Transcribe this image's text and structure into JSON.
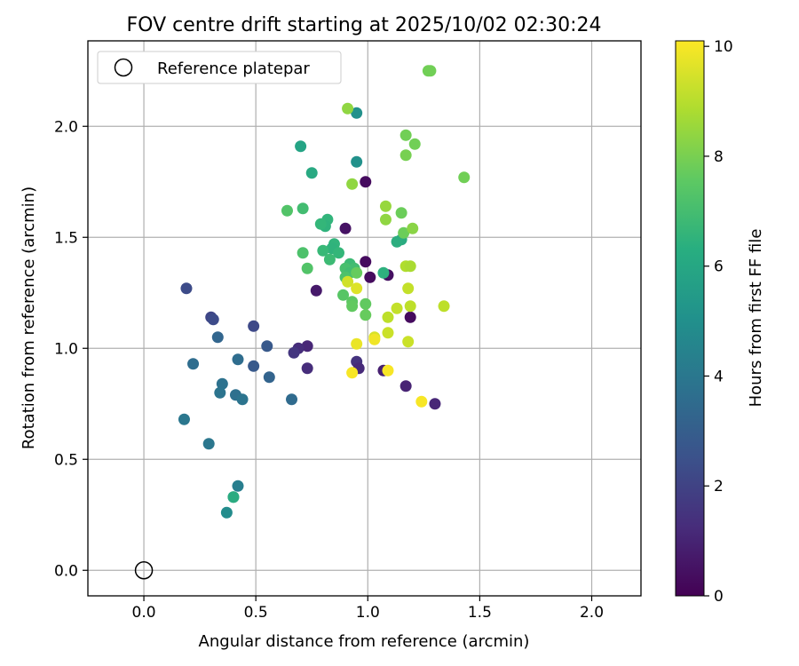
{
  "chart_data": {
    "type": "scatter",
    "title": "FOV centre drift starting at 2025/10/02 02:30:24",
    "xlabel": "Angular distance from reference (arcmin)",
    "ylabel": "Rotation from reference (arcmin)",
    "xlim": [
      -0.25,
      2.22
    ],
    "ylim": [
      -0.115,
      2.385
    ],
    "xticks": [
      0.0,
      0.5,
      1.0,
      1.5,
      2.0
    ],
    "xtick_labels": [
      "0.0",
      "0.5",
      "1.0",
      "1.5",
      "2.0"
    ],
    "yticks": [
      0.0,
      0.5,
      1.0,
      1.5,
      2.0
    ],
    "ytick_labels": [
      "0.0",
      "0.5",
      "1.0",
      "1.5",
      "2.0"
    ],
    "grid": true,
    "legend": {
      "position": "top-left",
      "entries": [
        "Reference platepar"
      ]
    },
    "reference_point": {
      "x": 0.0,
      "y": 0.0
    },
    "colorbar": {
      "label": "Hours from first FF file",
      "range": [
        0,
        10.1
      ],
      "ticks": [
        0,
        2,
        4,
        6,
        8,
        10
      ],
      "tick_labels": [
        "0",
        "2",
        "4",
        "6",
        "8",
        "10"
      ],
      "colormap": "viridis"
    },
    "points": [
      {
        "x": 0.99,
        "y": 1.75,
        "h": 0.3
      },
      {
        "x": 0.9,
        "y": 1.54,
        "h": 0.5
      },
      {
        "x": 0.99,
        "y": 1.39,
        "h": 0.3
      },
      {
        "x": 1.09,
        "y": 1.33,
        "h": 0.4
      },
      {
        "x": 1.01,
        "y": 1.32,
        "h": 0.3
      },
      {
        "x": 0.77,
        "y": 1.26,
        "h": 0.7
      },
      {
        "x": 1.19,
        "y": 1.14,
        "h": 0.3
      },
      {
        "x": 0.73,
        "y": 1.01,
        "h": 1.1
      },
      {
        "x": 0.69,
        "y": 1.0,
        "h": 1.3
      },
      {
        "x": 0.67,
        "y": 0.98,
        "h": 1.6
      },
      {
        "x": 0.73,
        "y": 0.91,
        "h": 1.3
      },
      {
        "x": 0.95,
        "y": 0.94,
        "h": 1.5
      },
      {
        "x": 0.96,
        "y": 0.91,
        "h": 1.2
      },
      {
        "x": 1.07,
        "y": 0.9,
        "h": 0.9
      },
      {
        "x": 1.17,
        "y": 0.83,
        "h": 1.0
      },
      {
        "x": 1.3,
        "y": 0.75,
        "h": 1.1
      },
      {
        "x": 0.19,
        "y": 1.27,
        "h": 2.3
      },
      {
        "x": 0.3,
        "y": 1.14,
        "h": 2.1
      },
      {
        "x": 0.31,
        "y": 1.13,
        "h": 2.3
      },
      {
        "x": 0.49,
        "y": 1.1,
        "h": 2.2
      },
      {
        "x": 0.55,
        "y": 1.01,
        "h": 2.8
      },
      {
        "x": 0.49,
        "y": 0.92,
        "h": 2.8
      },
      {
        "x": 0.56,
        "y": 0.87,
        "h": 3.2
      },
      {
        "x": 0.33,
        "y": 1.05,
        "h": 3.3
      },
      {
        "x": 0.42,
        "y": 0.95,
        "h": 3.6
      },
      {
        "x": 0.22,
        "y": 0.93,
        "h": 3.6
      },
      {
        "x": 0.35,
        "y": 0.84,
        "h": 3.8
      },
      {
        "x": 0.34,
        "y": 0.8,
        "h": 3.9
      },
      {
        "x": 0.41,
        "y": 0.79,
        "h": 3.7
      },
      {
        "x": 0.44,
        "y": 0.77,
        "h": 3.9
      },
      {
        "x": 0.66,
        "y": 0.77,
        "h": 3.5
      },
      {
        "x": 0.18,
        "y": 0.68,
        "h": 4.0
      },
      {
        "x": 0.29,
        "y": 0.57,
        "h": 4.0
      },
      {
        "x": 0.42,
        "y": 0.38,
        "h": 4.3
      },
      {
        "x": 0.4,
        "y": 0.33,
        "h": 5.9
      },
      {
        "x": 0.4,
        "y": 0.33,
        "h": 6.2
      },
      {
        "x": 0.37,
        "y": 0.26,
        "h": 4.9
      },
      {
        "x": 0.95,
        "y": 2.06,
        "h": 5.1
      },
      {
        "x": 0.95,
        "y": 1.84,
        "h": 5.1
      },
      {
        "x": 0.7,
        "y": 1.91,
        "h": 5.9
      },
      {
        "x": 0.75,
        "y": 1.79,
        "h": 6.1
      },
      {
        "x": 1.15,
        "y": 1.49,
        "h": 6.2
      },
      {
        "x": 1.13,
        "y": 1.48,
        "h": 6.3
      },
      {
        "x": 1.07,
        "y": 1.34,
        "h": 6.4
      },
      {
        "x": 0.82,
        "y": 1.58,
        "h": 6.6
      },
      {
        "x": 0.81,
        "y": 1.55,
        "h": 6.5
      },
      {
        "x": 0.79,
        "y": 1.56,
        "h": 6.7
      },
      {
        "x": 0.85,
        "y": 1.47,
        "h": 6.6
      },
      {
        "x": 0.84,
        "y": 1.45,
        "h": 6.5
      },
      {
        "x": 0.8,
        "y": 1.44,
        "h": 6.8
      },
      {
        "x": 0.87,
        "y": 1.43,
        "h": 6.7
      },
      {
        "x": 0.83,
        "y": 1.4,
        "h": 6.9
      },
      {
        "x": 0.92,
        "y": 1.38,
        "h": 6.9
      },
      {
        "x": 0.94,
        "y": 1.36,
        "h": 7.0
      },
      {
        "x": 0.9,
        "y": 1.36,
        "h": 7.1
      },
      {
        "x": 0.92,
        "y": 1.34,
        "h": 7.0
      },
      {
        "x": 0.9,
        "y": 1.32,
        "h": 7.2
      },
      {
        "x": 0.71,
        "y": 1.63,
        "h": 7.0
      },
      {
        "x": 0.64,
        "y": 1.62,
        "h": 7.3
      },
      {
        "x": 0.71,
        "y": 1.43,
        "h": 7.2
      },
      {
        "x": 0.73,
        "y": 1.36,
        "h": 7.3
      },
      {
        "x": 0.89,
        "y": 1.24,
        "h": 7.4
      },
      {
        "x": 0.93,
        "y": 1.21,
        "h": 7.5
      },
      {
        "x": 0.93,
        "y": 1.19,
        "h": 7.6
      },
      {
        "x": 0.99,
        "y": 1.2,
        "h": 7.6
      },
      {
        "x": 0.99,
        "y": 1.15,
        "h": 7.7
      },
      {
        "x": 0.95,
        "y": 1.34,
        "h": 7.7
      },
      {
        "x": 1.27,
        "y": 2.25,
        "h": 7.9
      },
      {
        "x": 1.28,
        "y": 2.25,
        "h": 7.9
      },
      {
        "x": 1.17,
        "y": 1.96,
        "h": 7.9
      },
      {
        "x": 1.21,
        "y": 1.92,
        "h": 7.9
      },
      {
        "x": 1.17,
        "y": 1.87,
        "h": 8.0
      },
      {
        "x": 1.43,
        "y": 1.77,
        "h": 7.9
      },
      {
        "x": 1.15,
        "y": 1.61,
        "h": 7.8
      },
      {
        "x": 1.16,
        "y": 1.52,
        "h": 7.8
      },
      {
        "x": 0.91,
        "y": 2.08,
        "h": 8.4
      },
      {
        "x": 0.93,
        "y": 1.74,
        "h": 8.4
      },
      {
        "x": 1.08,
        "y": 1.64,
        "h": 8.5
      },
      {
        "x": 1.08,
        "y": 1.58,
        "h": 8.4
      },
      {
        "x": 1.2,
        "y": 1.54,
        "h": 8.3
      },
      {
        "x": 1.17,
        "y": 1.37,
        "h": 8.9
      },
      {
        "x": 1.19,
        "y": 1.37,
        "h": 8.8
      },
      {
        "x": 1.18,
        "y": 1.27,
        "h": 9.2
      },
      {
        "x": 1.19,
        "y": 1.19,
        "h": 9.1
      },
      {
        "x": 1.13,
        "y": 1.18,
        "h": 9.2
      },
      {
        "x": 1.09,
        "y": 1.14,
        "h": 9.1
      },
      {
        "x": 1.09,
        "y": 1.07,
        "h": 9.3
      },
      {
        "x": 1.03,
        "y": 1.05,
        "h": 9.5
      },
      {
        "x": 1.18,
        "y": 1.03,
        "h": 9.3
      },
      {
        "x": 1.34,
        "y": 1.19,
        "h": 9.1
      },
      {
        "x": 0.95,
        "y": 1.27,
        "h": 9.6
      },
      {
        "x": 0.91,
        "y": 1.3,
        "h": 9.4
      },
      {
        "x": 0.95,
        "y": 1.02,
        "h": 9.8
      },
      {
        "x": 1.03,
        "y": 1.04,
        "h": 9.9
      },
      {
        "x": 0.93,
        "y": 0.89,
        "h": 10.0
      },
      {
        "x": 1.09,
        "y": 0.9,
        "h": 10.0
      },
      {
        "x": 1.24,
        "y": 0.76,
        "h": 10.0
      }
    ]
  }
}
